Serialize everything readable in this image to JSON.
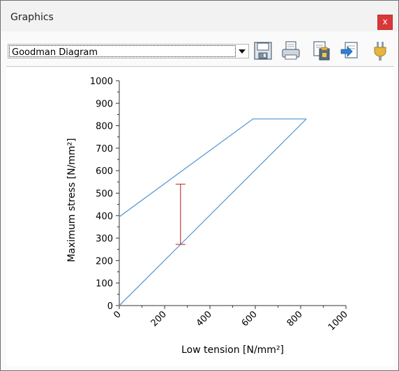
{
  "window": {
    "title": "Graphics",
    "close_glyph": "x"
  },
  "toolbar": {
    "diagram_select": {
      "selected": "Goodman Diagram"
    },
    "buttons": [
      {
        "icon": "save-icon"
      },
      {
        "icon": "print-icon"
      },
      {
        "icon": "copy-clipboard-icon"
      },
      {
        "icon": "export-icon"
      },
      {
        "icon": "settings-icon"
      }
    ]
  },
  "chart_data": {
    "type": "line",
    "xlabel": "Low tension [N/mm²]",
    "ylabel": "Maximum stress [N/mm²]",
    "xlim": [
      0,
      1000
    ],
    "ylim": [
      0,
      1000
    ],
    "x_ticks": [
      "0",
      "200",
      "400",
      "600",
      "800",
      "1000"
    ],
    "y_ticks": [
      "0",
      "100",
      "200",
      "300",
      "400",
      "500",
      "600",
      "700",
      "800",
      "900",
      "1000"
    ],
    "grid": false,
    "series": [
      {
        "x": [
          0,
          590,
          825
        ],
        "y": [
          395,
          830,
          830
        ],
        "color": "#5b9bd5"
      },
      {
        "x": [
          0,
          825
        ],
        "y": [
          0,
          830
        ],
        "color": "#5b9bd5"
      }
    ],
    "range_bar": {
      "x": 270,
      "y_low": 272,
      "y_high": 540,
      "color": "#c0504d"
    }
  }
}
